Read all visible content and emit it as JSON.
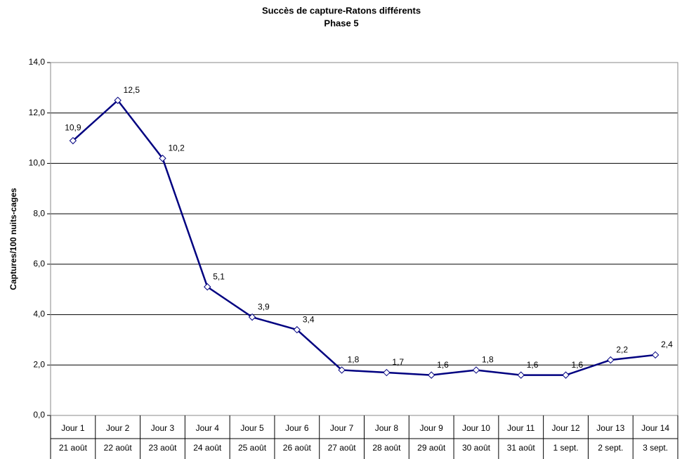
{
  "chart_data": {
    "type": "line",
    "title": "Succès de capture-Ratons différents",
    "subtitle": "Phase 5",
    "y_label": "Captures/100 nuits-cages",
    "categories": [
      "Jour 1",
      "Jour 2",
      "Jour 3",
      "Jour 4",
      "Jour 5",
      "Jour 6",
      "Jour 7",
      "Jour 8",
      "Jour 9",
      "Jour 10",
      "Jour 11",
      "Jour 12",
      "Jour 13",
      "Jour 14"
    ],
    "subcategories": [
      "21 août",
      "22 août",
      "23 août",
      "24 août",
      "25 août",
      "26 août",
      "27 août",
      "28 août",
      "29 août",
      "30 août",
      "31 août",
      "1 sept.",
      "2 sept.",
      "3 sept."
    ],
    "series": [
      {
        "color": "#000080",
        "values": [
          10.9,
          12.5,
          10.2,
          5.1,
          3.9,
          3.4,
          1.8,
          1.7,
          1.6,
          1.8,
          1.6,
          1.6,
          2.2,
          2.4
        ],
        "value_labels": [
          "10,9",
          "12,5",
          "10,2",
          "5,1",
          "3,9",
          "3,4",
          "1,8",
          "1,7",
          "1,6",
          "1,8",
          "1,6",
          "1,6",
          "2,2",
          "2,4"
        ]
      }
    ],
    "ylim": [
      0,
      14
    ],
    "yticks": [
      {
        "value": 0,
        "label": "0,0"
      },
      {
        "value": 2,
        "label": "2,0"
      },
      {
        "value": 4,
        "label": "4,0"
      },
      {
        "value": 6,
        "label": "6,0"
      },
      {
        "value": 8,
        "label": "8,0"
      },
      {
        "value": 10,
        "label": "10,0"
      },
      {
        "value": 12,
        "label": "12,0"
      },
      {
        "value": 14,
        "label": "14,0"
      }
    ],
    "grid": true
  }
}
